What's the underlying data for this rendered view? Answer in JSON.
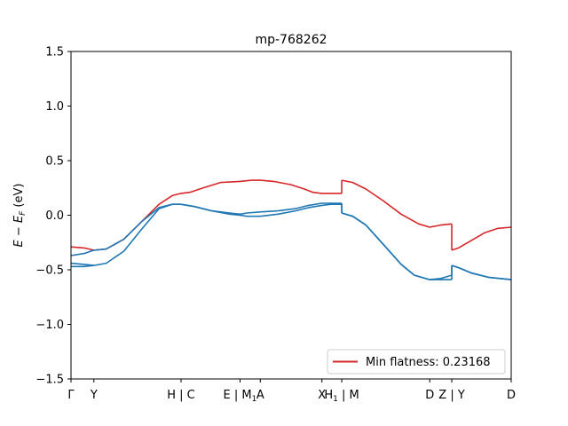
{
  "chart_data": {
    "type": "line",
    "title": "mp-768262",
    "xlabel": "",
    "ylabel": "E − E_F (eV)",
    "ylabel_main": "E − E",
    "ylabel_sub": "F",
    "ylabel_unit": " (eV)",
    "ylim": [
      -1.5,
      1.5
    ],
    "yticks": [
      -1.5,
      -1.0,
      -0.5,
      0.0,
      0.5,
      1.0,
      1.5
    ],
    "ytick_labels": [
      "−1.5",
      "−1.0",
      "−0.5",
      "0.0",
      "0.5",
      "1.0",
      "1.5"
    ],
    "xlim": [
      0,
      100
    ],
    "xticks": [
      {
        "x": 0.0,
        "label": "Γ"
      },
      {
        "x": 5.2,
        "label": "Y"
      },
      {
        "x": 25.0,
        "label": "H | C"
      },
      {
        "x": 38.4,
        "label": "E | M1",
        "label_main": "E | M",
        "label_sub": "1"
      },
      {
        "x": 43.0,
        "label": "A"
      },
      {
        "x": 57.0,
        "label": "X"
      },
      {
        "x": 61.5,
        "label": "H1 | M",
        "label_main": "H",
        "label_sub": "1",
        "label_tail": " | M"
      },
      {
        "x": 81.5,
        "label": "D"
      },
      {
        "x": 86.5,
        "label": "Z | Y"
      },
      {
        "x": 100.0,
        "label": "D"
      }
    ],
    "legend": {
      "label": "Min flatness: 0.23168",
      "placement": "lower-right"
    },
    "grid": false,
    "series": [
      {
        "color": "#d62728",
        "segments": [
          [
            [
              0,
              -0.29
            ],
            [
              3,
              -0.3
            ],
            [
              5.2,
              -0.32
            ],
            [
              8,
              -0.31
            ],
            [
              12,
              -0.22
            ],
            [
              16,
              -0.06
            ],
            [
              20,
              0.1
            ],
            [
              23,
              0.18
            ],
            [
              25,
              0.2
            ],
            [
              27,
              0.21
            ],
            [
              30,
              0.25
            ],
            [
              34,
              0.3
            ],
            [
              38.4,
              0.31
            ],
            [
              41,
              0.32
            ],
            [
              43,
              0.32
            ],
            [
              46,
              0.31
            ],
            [
              50,
              0.28
            ],
            [
              53,
              0.24
            ],
            [
              55,
              0.21
            ],
            [
              57,
              0.2
            ],
            [
              59,
              0.2
            ],
            [
              61.5,
              0.2
            ]
          ],
          [
            [
              61.5,
              0.32
            ],
            [
              64,
              0.3
            ],
            [
              67,
              0.24
            ],
            [
              71,
              0.13
            ],
            [
              75,
              0.01
            ],
            [
              79,
              -0.08
            ],
            [
              81.5,
              -0.11
            ],
            [
              84,
              -0.09
            ],
            [
              86.5,
              -0.08
            ]
          ],
          [
            [
              86.5,
              -0.32
            ],
            [
              88,
              -0.3
            ],
            [
              91,
              -0.23
            ],
            [
              94,
              -0.16
            ],
            [
              97,
              -0.12
            ],
            [
              100,
              -0.11
            ]
          ]
        ]
      },
      {
        "color": "#1f77b4",
        "segments": [
          [
            [
              0,
              -0.37
            ],
            [
              3,
              -0.35
            ],
            [
              5.2,
              -0.32
            ],
            [
              8,
              -0.31
            ],
            [
              12,
              -0.22
            ],
            [
              16,
              -0.06
            ],
            [
              20,
              0.07
            ],
            [
              23,
              0.1
            ],
            [
              25,
              0.1
            ],
            [
              28,
              0.08
            ],
            [
              32,
              0.04
            ],
            [
              36,
              0.02
            ],
            [
              38.4,
              0.01
            ],
            [
              40,
              0.02
            ],
            [
              43,
              0.03
            ],
            [
              47,
              0.04
            ],
            [
              51,
              0.06
            ],
            [
              54,
              0.09
            ],
            [
              57,
              0.11
            ],
            [
              59,
              0.11
            ],
            [
              61.5,
              0.11
            ]
          ],
          [
            [
              61.5,
              0.02
            ],
            [
              64,
              -0.01
            ],
            [
              67,
              -0.09
            ],
            [
              71,
              -0.27
            ],
            [
              75,
              -0.45
            ],
            [
              78,
              -0.55
            ],
            [
              81.5,
              -0.59
            ],
            [
              84,
              -0.58
            ],
            [
              86.5,
              -0.55
            ]
          ],
          [
            [
              86.5,
              -0.46
            ],
            [
              88,
              -0.48
            ],
            [
              91,
              -0.53
            ],
            [
              95,
              -0.57
            ],
            [
              100,
              -0.59
            ]
          ]
        ]
      },
      {
        "color": "#1f77b4",
        "segments": [
          [
            [
              0,
              -0.44
            ],
            [
              3,
              -0.45
            ],
            [
              5.2,
              -0.46
            ],
            [
              8,
              -0.44
            ],
            [
              12,
              -0.33
            ],
            [
              16,
              -0.13
            ],
            [
              20,
              0.06
            ],
            [
              23,
              0.1
            ],
            [
              25,
              0.1
            ],
            [
              28,
              0.08
            ],
            [
              32,
              0.04
            ],
            [
              36,
              0.01
            ],
            [
              38.4,
              0.0
            ],
            [
              40,
              -0.01
            ],
            [
              43,
              -0.01
            ],
            [
              47,
              0.01
            ],
            [
              51,
              0.04
            ],
            [
              54,
              0.07
            ],
            [
              57,
              0.09
            ],
            [
              59,
              0.1
            ],
            [
              61.5,
              0.1
            ]
          ],
          [
            [
              61.5,
              0.02
            ],
            [
              64,
              -0.01
            ],
            [
              67,
              -0.09
            ],
            [
              71,
              -0.27
            ],
            [
              75,
              -0.45
            ],
            [
              78,
              -0.55
            ],
            [
              81.5,
              -0.59
            ],
            [
              84,
              -0.59
            ],
            [
              86.5,
              -0.59
            ]
          ],
          [
            [
              86.5,
              -0.46
            ],
            [
              88,
              -0.48
            ],
            [
              91,
              -0.53
            ],
            [
              95,
              -0.57
            ],
            [
              100,
              -0.59
            ]
          ]
        ]
      },
      {
        "color": "#1f77b4",
        "segments": [
          [
            [
              0,
              -0.47
            ],
            [
              3,
              -0.47
            ],
            [
              5.2,
              -0.46
            ]
          ]
        ]
      }
    ]
  }
}
